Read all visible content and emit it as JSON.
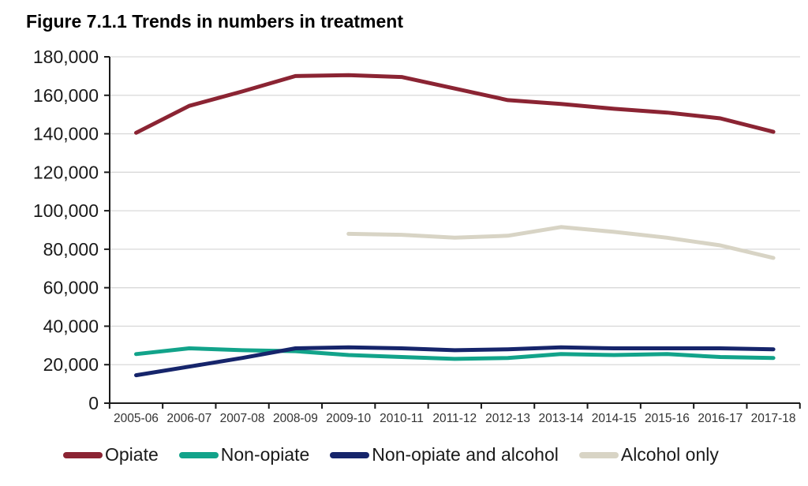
{
  "title": "Figure 7.1.1 Trends in numbers in treatment",
  "colors": {
    "background": "#ffffff",
    "gridline": "#d9d9d9",
    "axis": "#1a1a1a",
    "x_tick_label": "#333333",
    "y_tick_label": "#1a1a1a"
  },
  "chart_data": {
    "type": "line",
    "title": "Figure 7.1.1 Trends in numbers in treatment",
    "xlabel": "",
    "ylabel": "",
    "ylim": [
      0,
      180000
    ],
    "y_tick_step": 20000,
    "y_tick_labels": [
      "0",
      "20,000",
      "40,000",
      "60,000",
      "80,000",
      "100,000",
      "120,000",
      "140,000",
      "160,000",
      "180,000"
    ],
    "grid": true,
    "legend_position": "bottom",
    "categories": [
      "2005-06",
      "2006-07",
      "2007-08",
      "2008-09",
      "2009-10",
      "2010-11",
      "2011-12",
      "2012-13",
      "2013-14",
      "2014-15",
      "2015-16",
      "2016-17",
      "2017-18"
    ],
    "series": [
      {
        "name": "Opiate",
        "color": "#8b2433",
        "values": [
          140500,
          154500,
          162000,
          170000,
          170500,
          169500,
          163500,
          157500,
          155500,
          153000,
          151000,
          148000,
          141000
        ]
      },
      {
        "name": "Non-opiate",
        "color": "#12a38a",
        "values": [
          25500,
          28500,
          27500,
          27000,
          25000,
          24000,
          23000,
          23500,
          25500,
          25000,
          25500,
          24000,
          23500
        ]
      },
      {
        "name": "Non-opiate and alcohol",
        "color": "#16256b",
        "values": [
          14500,
          19000,
          23500,
          28500,
          29000,
          28500,
          27500,
          28000,
          29000,
          28500,
          28500,
          28500,
          28000
        ]
      },
      {
        "name": "Alcohol only",
        "color": "#d8d4c5",
        "values": [
          null,
          null,
          null,
          null,
          88000,
          87500,
          86000,
          87000,
          91500,
          89000,
          86000,
          82000,
          75500
        ]
      }
    ]
  }
}
